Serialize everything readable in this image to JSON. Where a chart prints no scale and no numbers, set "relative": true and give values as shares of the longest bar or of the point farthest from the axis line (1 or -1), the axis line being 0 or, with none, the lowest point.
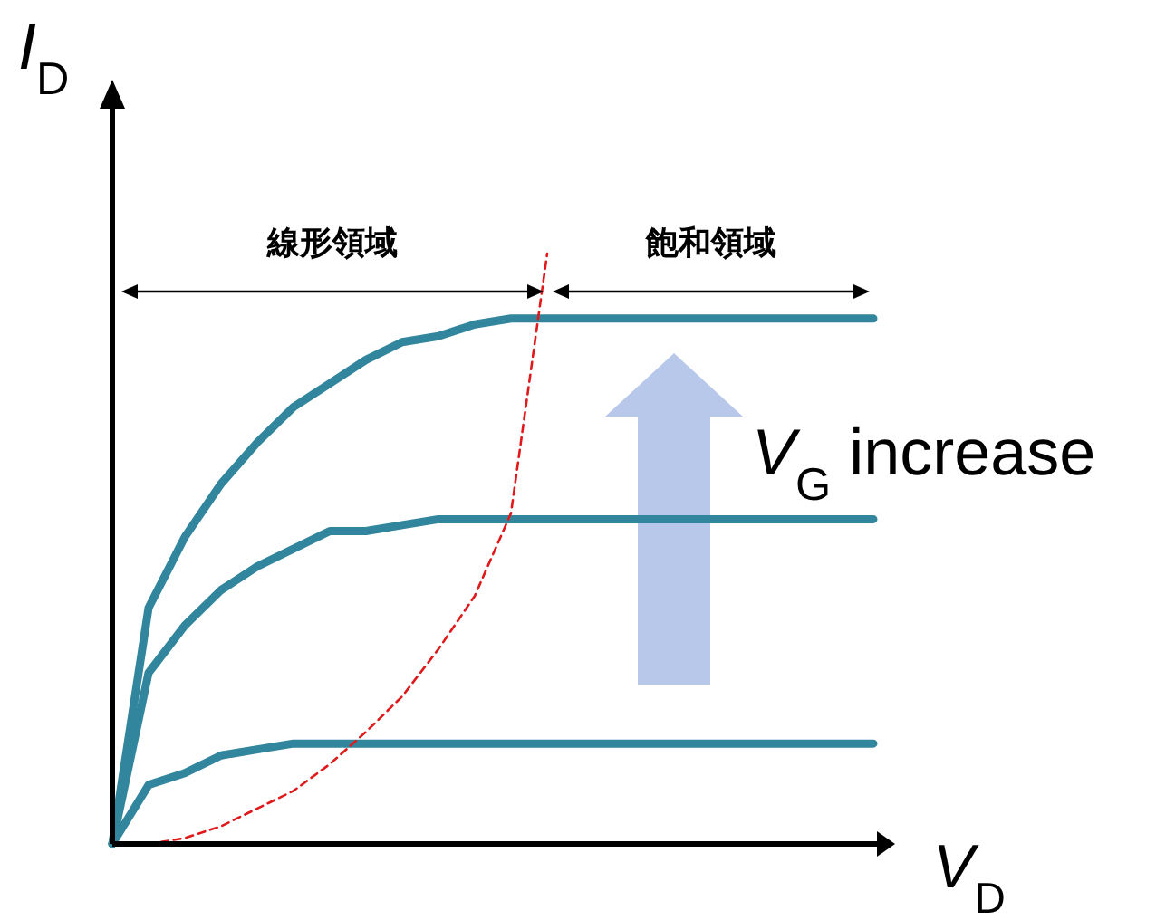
{
  "chart_data": {
    "type": "line",
    "relative": true,
    "xlabel": "*V*$_{D}$",
    "ylabel": "*I*$_{D}$",
    "categories": [
      null,
      null,
      null,
      null,
      null,
      null,
      null,
      null,
      null,
      null,
      null,
      null,
      null,
      null,
      null,
      null,
      null,
      null,
      null,
      null,
      null,
      null
    ],
    "series": [
      {
        "color": "#31859c",
        "line_style": "solid",
        "values": [
          0,
          0.4,
          0.52,
          0.61,
          0.68,
          0.74,
          0.78,
          0.82,
          0.85,
          0.86,
          0.88,
          0.89,
          0.89,
          0.89,
          0.89,
          0.89,
          0.89,
          0.89,
          0.89,
          0.89,
          0.89,
          0.89
        ]
      },
      {
        "color": "#31859c",
        "line_style": "solid",
        "values": [
          0,
          0.29,
          0.37,
          0.43,
          0.47,
          0.5,
          0.53,
          0.53,
          0.54,
          0.55,
          0.55,
          0.55,
          0.55,
          0.55,
          0.55,
          0.55,
          0.55,
          0.55,
          0.55,
          0.55,
          0.55,
          0.55
        ]
      },
      {
        "color": "#31859c",
        "line_style": "solid",
        "values": [
          0,
          0.1,
          0.12,
          0.15,
          0.16,
          0.17,
          0.17,
          0.17,
          0.17,
          0.17,
          0.17,
          0.17,
          0.17,
          0.17,
          0.17,
          0.17,
          0.17,
          0.17,
          0.17,
          0.17,
          0.17,
          0.17
        ]
      },
      {
        "color": "#e0191b",
        "line_style": "dashed",
        "values": [
          null,
          0,
          0.01,
          0.03,
          0.06,
          0.09,
          0.135,
          0.19,
          0.25,
          0.33,
          0.42,
          0.56,
          1,
          null,
          null,
          null,
          null,
          null,
          null,
          null,
          null,
          null
        ]
      }
    ],
    "annotations": [
      "線形領域",
      "飽和領域",
      "*V*$_{G}$ increase"
    ],
    "legend": false,
    "marker": "none",
    "grid": false
  }
}
